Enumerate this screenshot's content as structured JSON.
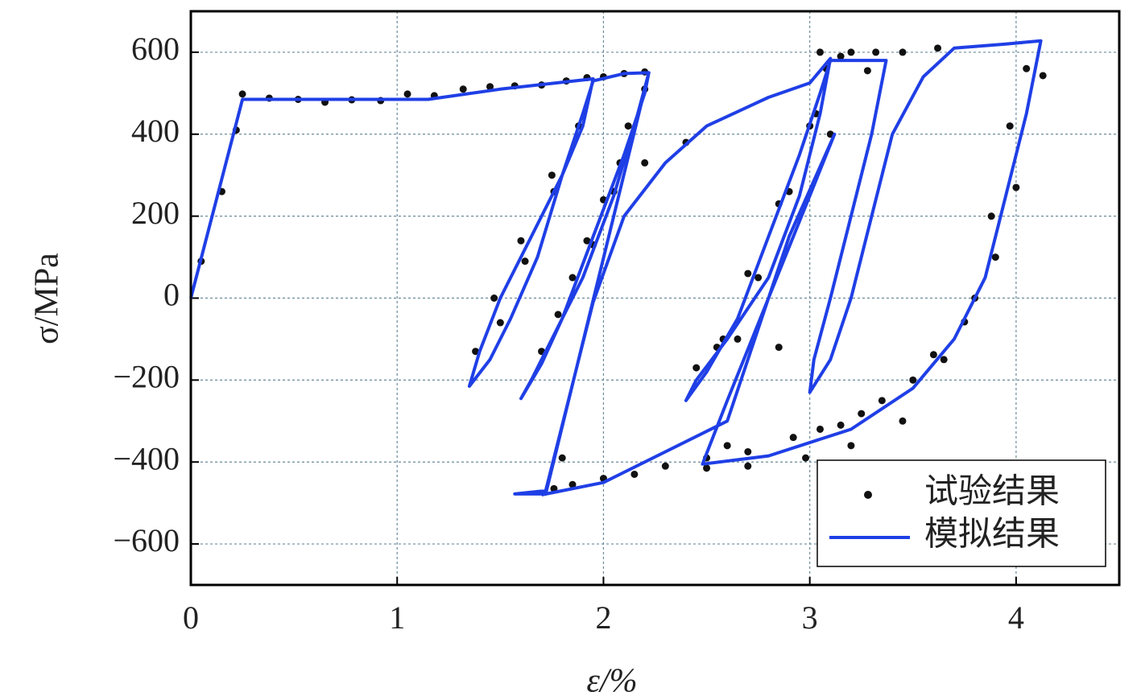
{
  "chart_data": {
    "type": "line",
    "xlabel": "ε/%",
    "ylabel": "σ/MPa",
    "xlim": [
      0,
      4.5
    ],
    "ylim": [
      -700,
      700
    ],
    "xticks": [
      0,
      1,
      2,
      3,
      4
    ],
    "yticks": [
      {
        "value": -600,
        "label": "−600"
      },
      {
        "value": -400,
        "label": "−400"
      },
      {
        "value": -200,
        "label": "−200"
      },
      0,
      200,
      400,
      600
    ],
    "grid": true,
    "legend": "lower right",
    "series": [
      {
        "name": "试验结果",
        "type": "scatter",
        "color": "#111111",
        "x": [
          0.05,
          0.15,
          0.22,
          0.25,
          0.38,
          0.52,
          0.65,
          0.78,
          0.92,
          1.05,
          1.18,
          1.32,
          1.45,
          1.57,
          1.7,
          1.82,
          1.92,
          1.88,
          1.75,
          1.6,
          1.47,
          1.38,
          1.5,
          1.62,
          1.76,
          1.88,
          2.0,
          2.1,
          2.2,
          2.12,
          2.0,
          1.85,
          1.7,
          1.78,
          1.92,
          2.08,
          2.2,
          1.8,
          1.76,
          1.85,
          2.0,
          2.15,
          2.3,
          2.5,
          2.7,
          2.92,
          3.05,
          3.15,
          3.25,
          3.35,
          3.5,
          3.6,
          3.75,
          3.9,
          4.0,
          4.13,
          3.03,
          2.9,
          2.75,
          2.58,
          2.45,
          2.55,
          2.7,
          2.85,
          3.0,
          3.08,
          3.28,
          3.15,
          3.05,
          3.2,
          3.32,
          3.45,
          3.62,
          4.05,
          3.97,
          3.88,
          3.8,
          3.65,
          3.45,
          3.2,
          2.98,
          2.7,
          2.5,
          2.6,
          2.65,
          2.85,
          3.1,
          2.4,
          2.2,
          2.05,
          1.95
        ],
        "y": [
          90,
          260,
          410,
          498,
          488,
          485,
          478,
          484,
          482,
          498,
          494,
          510,
          516,
          518,
          520,
          530,
          538,
          420,
          300,
          140,
          0,
          -130,
          -60,
          90,
          260,
          420,
          540,
          548,
          552,
          420,
          240,
          50,
          -130,
          -40,
          140,
          330,
          510,
          -390,
          -465,
          -455,
          -440,
          -430,
          -410,
          -390,
          -375,
          -340,
          -320,
          -310,
          -282,
          -250,
          -200,
          -138,
          -58,
          100,
          270,
          543,
          450,
          260,
          50,
          -100,
          -170,
          -120,
          60,
          230,
          420,
          560,
          555,
          590,
          600,
          600,
          600,
          600,
          610,
          560,
          420,
          200,
          0,
          -150,
          -300,
          -360,
          -390,
          -410,
          -415,
          -360,
          -100,
          -120,
          400,
          380,
          330,
          260,
          130
        ]
      },
      {
        "name": "模拟结果",
        "type": "line",
        "color": "#1f3fe6",
        "x": [
          0,
          0.25,
          1.15,
          1.5,
          1.95,
          1.9,
          1.8,
          1.65,
          1.5,
          1.4,
          1.35,
          1.45,
          1.55,
          1.68,
          1.8,
          1.9,
          1.95,
          2.1,
          2.22,
          2.15,
          2.05,
          1.9,
          1.75,
          1.65,
          1.6,
          1.7,
          1.8,
          1.95,
          2.1,
          2.2,
          2.22,
          1.72,
          1.57,
          1.72,
          1.95,
          2.1,
          2.3,
          2.5,
          2.8,
          3.0,
          3.1,
          3.05,
          2.95,
          2.8,
          2.6,
          2.45,
          2.4,
          2.5,
          2.65,
          2.8,
          2.95,
          3.05,
          3.1,
          3.37,
          3.3,
          3.2,
          3.1,
          3.02,
          3.0,
          3.1,
          3.2,
          3.3,
          3.4,
          3.55,
          3.7,
          3.95,
          4.12,
          4.05,
          3.95,
          3.85,
          3.7,
          3.5,
          3.2,
          2.8,
          2.48,
          2.6,
          2.8,
          3.0,
          3.12,
          2.9,
          2.7,
          2.6,
          2.0,
          1.7
        ],
        "y": [
          0,
          485,
          485,
          510,
          535,
          420,
          300,
          150,
          0,
          -130,
          -215,
          -150,
          -50,
          100,
          300,
          450,
          530,
          548,
          550,
          420,
          250,
          50,
          -100,
          -200,
          -245,
          -160,
          -50,
          150,
          350,
          500,
          550,
          -478,
          -478,
          -470,
          -10,
          200,
          330,
          420,
          490,
          525,
          585,
          450,
          250,
          50,
          -100,
          -200,
          -250,
          -180,
          -50,
          150,
          350,
          500,
          580,
          580,
          400,
          200,
          0,
          -150,
          -230,
          -150,
          0,
          200,
          400,
          540,
          610,
          620,
          628,
          450,
          250,
          50,
          -100,
          -220,
          -320,
          -385,
          -405,
          -250,
          0,
          250,
          400,
          150,
          -150,
          -300,
          -450,
          -480
        ]
      }
    ]
  }
}
